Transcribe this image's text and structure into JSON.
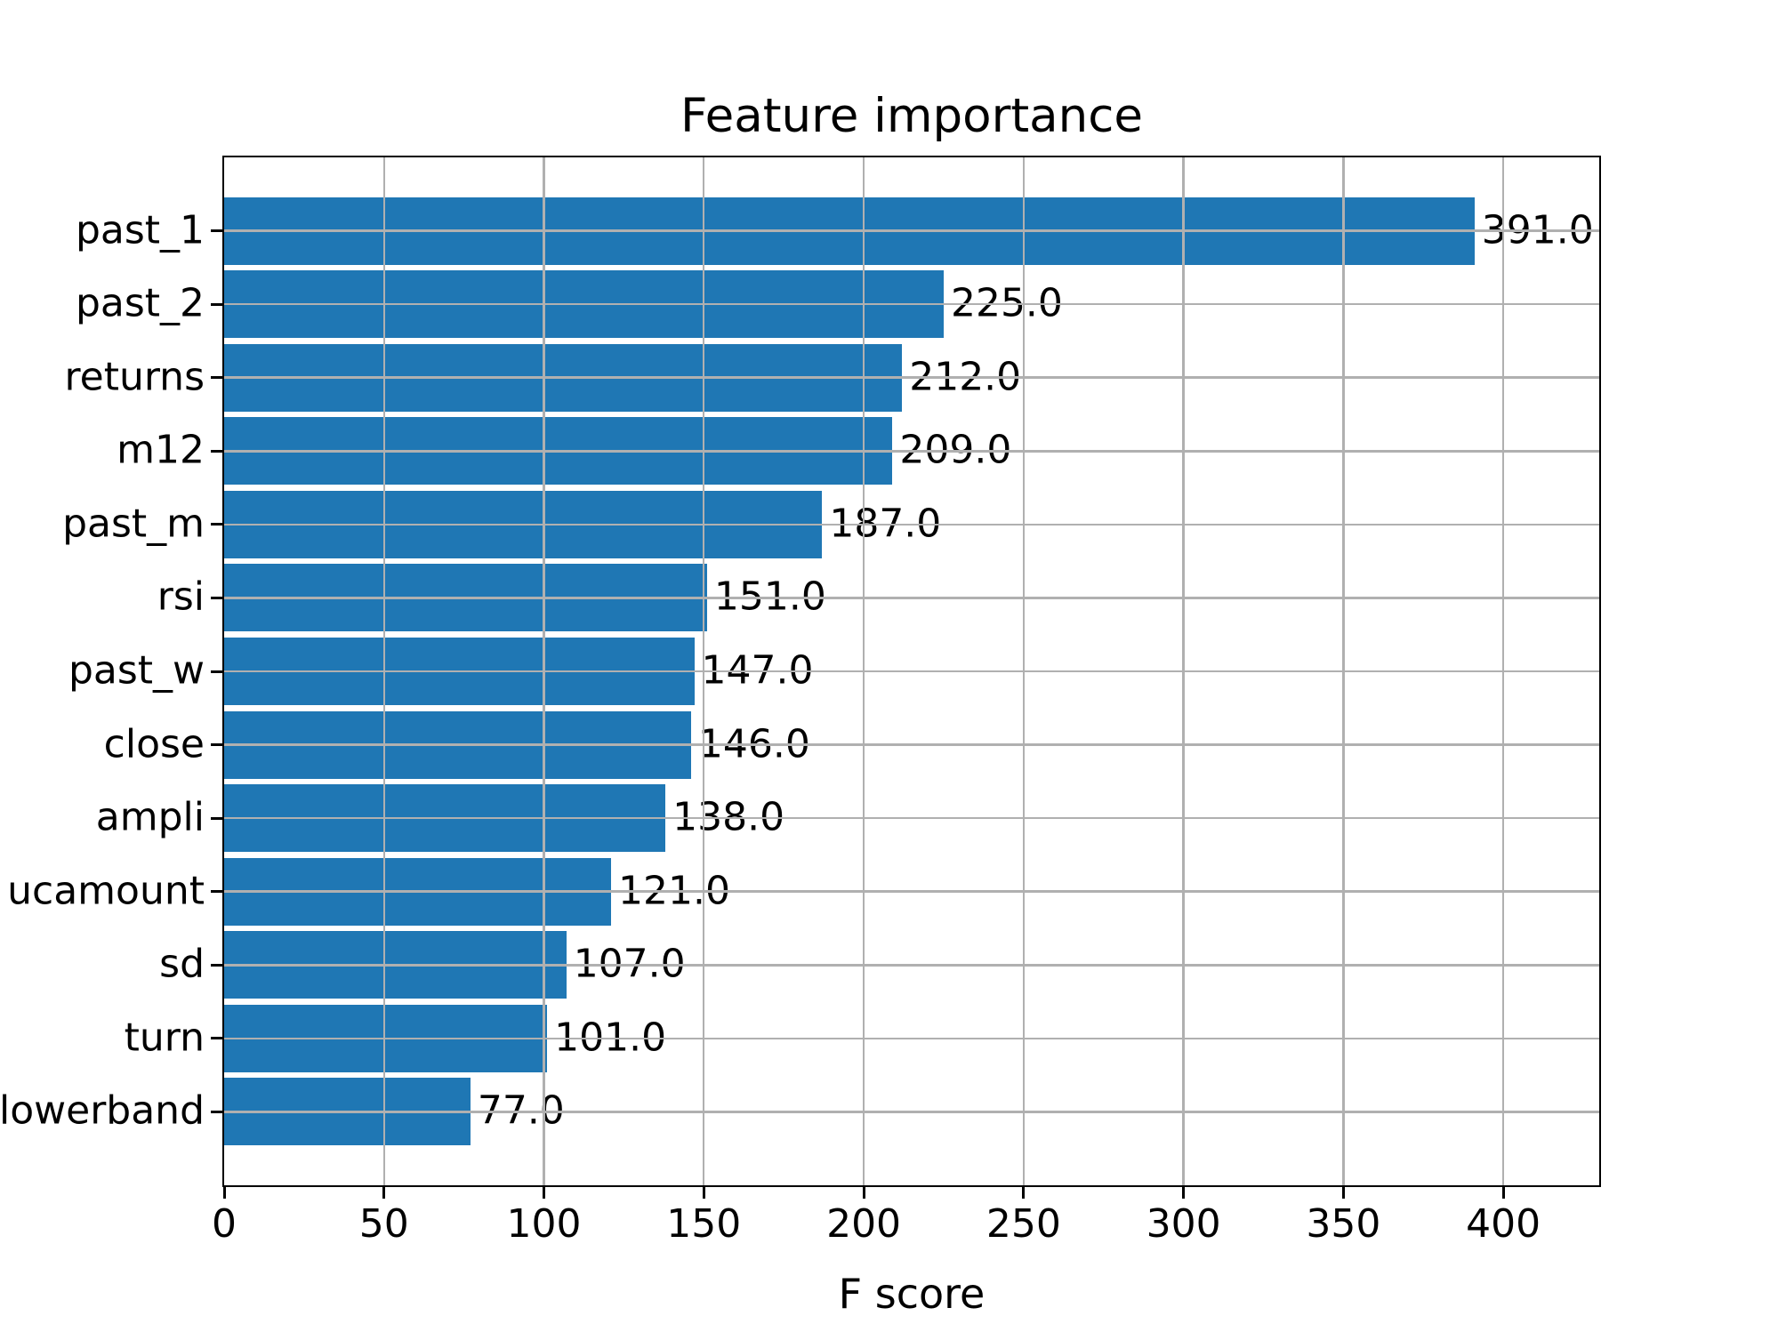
{
  "figure": {
    "background": "#ffffff"
  },
  "chart_data": {
    "type": "bar",
    "orientation": "horizontal",
    "title": "Feature importance",
    "xlabel": "F score",
    "ylabel": "",
    "categories": [
      "past_1",
      "past_2",
      "returns",
      "m12",
      "past_m",
      "rsi",
      "past_w",
      "close",
      "ampli",
      "ucamount",
      "sd",
      "turn",
      "lowerband"
    ],
    "values": [
      391.0,
      225.0,
      212.0,
      209.0,
      187.0,
      151.0,
      147.0,
      146.0,
      138.0,
      121.0,
      107.0,
      101.0,
      77.0
    ],
    "value_labels": [
      "391.0",
      "225.0",
      "212.0",
      "209.0",
      "187.0",
      "151.0",
      "147.0",
      "146.0",
      "138.0",
      "121.0",
      "107.0",
      "101.0",
      "77.0"
    ],
    "xticks": [
      0,
      50,
      100,
      150,
      200,
      250,
      300,
      350,
      400
    ],
    "xlim": [
      0,
      430
    ],
    "grid": true,
    "grid_on_top": true,
    "legend": "none",
    "bar_color": "#1f77b4",
    "grid_color": "#b0b0b0",
    "spine_color": "#000000",
    "text_color": "#000000"
  }
}
